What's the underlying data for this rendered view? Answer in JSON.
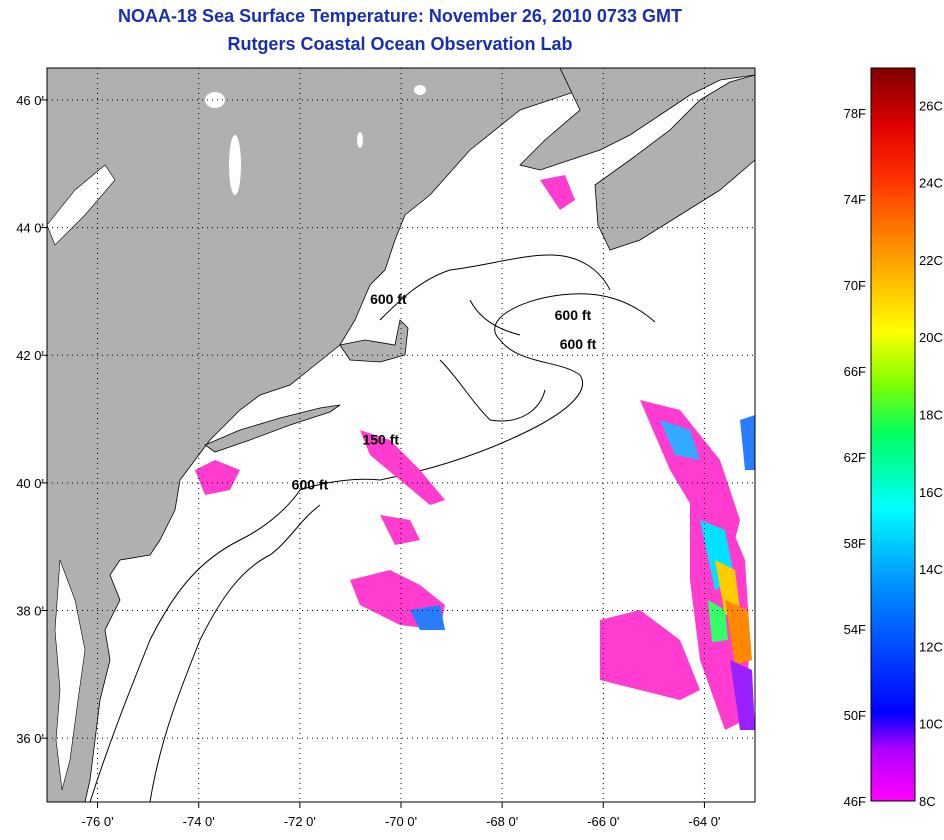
{
  "header": {
    "title": "NOAA-18 Sea Surface Temperature:  November 26, 2010 0733 GMT",
    "subtitle": "Rutgers Coastal Ocean Observation Lab"
  },
  "map": {
    "lon_range": [
      -77,
      -63
    ],
    "lat_range": [
      35,
      46.5
    ],
    "lon_ticks": [
      -76,
      -74,
      -72,
      -70,
      -68,
      -66,
      -64
    ],
    "lon_tick_labels": [
      "-76 0'",
      "-74 0'",
      "-72 0'",
      "-70 0'",
      "-68 0'",
      "-66 0'",
      "-64 0'"
    ],
    "lat_ticks": [
      36,
      38,
      40,
      42,
      44,
      46
    ],
    "lat_tick_labels": [
      "36 0'",
      "38 0'",
      "40 0'",
      "42 0'",
      "44 0'",
      "46 0'"
    ],
    "land_color": "#b0b0b0",
    "water_color": "#ffffff",
    "contour_labels": [
      {
        "text": "600 ft",
        "lon": -70.25,
        "lat": 42.8
      },
      {
        "text": "600 ft",
        "lon": -66.6,
        "lat": 42.55
      },
      {
        "text": "600 ft",
        "lon": -66.5,
        "lat": 42.1
      },
      {
        "text": "150 ft",
        "lon": -70.4,
        "lat": 40.6
      },
      {
        "text": "600 ft",
        "lon": -71.8,
        "lat": 39.9
      }
    ]
  },
  "colorbar": {
    "min_color": "#ff00ff",
    "max_color": "#800000",
    "fahrenheit_labels": [
      "46F",
      "50F",
      "54F",
      "58F",
      "62F",
      "66F",
      "70F",
      "74F",
      "78F"
    ],
    "celsius_labels": [
      "8C",
      "10C",
      "12C",
      "14C",
      "16C",
      "18C",
      "20C",
      "22C",
      "24C",
      "26C"
    ]
  }
}
